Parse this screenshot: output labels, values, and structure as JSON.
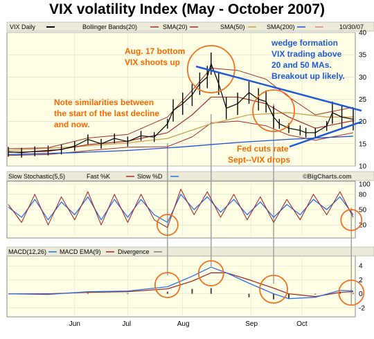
{
  "title": "VIX volatility Index (May - October 2007)",
  "legend_bar": {
    "symbol": "VIX Daily",
    "bollinger": "Bollinger Bands(20)",
    "sma20": "SMA(20)",
    "sma50": "SMA(50)",
    "sma200": "SMA(200)",
    "date": "10/30/07"
  },
  "stoch_header": {
    "name": "Slow Stochastic(5,5)",
    "fast": "Fast %K",
    "slow": "Slow %D",
    "credit": "©BigCharts.com"
  },
  "macd_header": {
    "name": "MACD(12,26)",
    "ema": "MACD EMA(9)",
    "divergence": "Divergence"
  },
  "annotations": {
    "aug17": [
      "Aug. 17 bottom",
      "VIX shoots up"
    ],
    "wedge": [
      "wedge formation",
      "VIX trading above",
      "20 and 50 MAs.",
      "Breakout up likely."
    ],
    "note": [
      "Note similarities between",
      "the start of the last decline",
      "and now."
    ],
    "fed": [
      "Fed cuts rate",
      "Sept--VIX drops"
    ]
  },
  "colors": {
    "panel_bg": "#ffffe6",
    "header_bg": "#ebebd8",
    "price": "#000000",
    "bollinger": "#a52a2a",
    "sma20": "#a52a2a",
    "sma50": "#c8a050",
    "sma200": "#1e4fd8",
    "fast_k": "#a52a2a",
    "slow_d": "#2a6ee8",
    "annotation": "#ff6600",
    "wedge_note": "#1e5ad8",
    "wedge_line": "#1e5ad8",
    "circle": "#f07020",
    "vline": "#a0a0a0"
  },
  "chart_data": [
    {
      "type": "line",
      "panel": "price",
      "x_ticks": [
        "Jun",
        "Jul",
        "Aug",
        "Sep",
        "Oct"
      ],
      "y_ticks": [
        10,
        15,
        20,
        25,
        30,
        35,
        40
      ],
      "ylim": [
        10,
        40
      ],
      "series": [
        {
          "name": "VIX Daily",
          "x": [
            "05-01",
            "05-08",
            "05-15",
            "05-22",
            "05-29",
            "06-05",
            "06-12",
            "06-19",
            "06-26",
            "07-03",
            "07-10",
            "07-17",
            "07-24",
            "07-27",
            "08-01",
            "08-06",
            "08-10",
            "08-14",
            "08-16",
            "08-20",
            "08-24",
            "08-30",
            "09-05",
            "09-10",
            "09-14",
            "09-18",
            "09-21",
            "09-26",
            "10-02",
            "10-05",
            "10-10",
            "10-16",
            "10-19",
            "10-24",
            "10-30"
          ],
          "values": [
            13.2,
            13.0,
            13.3,
            13.5,
            13.7,
            14.5,
            16.0,
            15.0,
            16.2,
            15.5,
            16.8,
            16.5,
            19.5,
            22.5,
            24.0,
            26.0,
            28.5,
            30.0,
            33.0,
            28.5,
            23.0,
            24.0,
            26.5,
            25.0,
            24.5,
            21.0,
            19.5,
            18.5,
            18.0,
            17.5,
            17.5,
            19.0,
            22.0,
            21.0,
            20.5
          ]
        },
        {
          "name": "SMA(20)",
          "x": [
            "05-01",
            "05-22",
            "06-12",
            "07-03",
            "07-24",
            "08-06",
            "08-16",
            "08-30",
            "09-14",
            "09-26",
            "10-10",
            "10-30"
          ],
          "values": [
            13.1,
            13.3,
            14.8,
            15.6,
            17.5,
            21.5,
            25.5,
            25.5,
            24.0,
            21.0,
            18.5,
            20.2
          ]
        },
        {
          "name": "SMA(50)",
          "x": [
            "05-01",
            "06-05",
            "07-03",
            "07-24",
            "08-16",
            "09-05",
            "09-26",
            "10-16",
            "10-30"
          ],
          "values": [
            13.5,
            14.3,
            15.2,
            16.2,
            19.5,
            21.5,
            22.0,
            21.0,
            21.0
          ]
        },
        {
          "name": "SMA(200)",
          "x": [
            "05-01",
            "06-05",
            "07-03",
            "08-01",
            "08-30",
            "09-26",
            "10-30"
          ],
          "values": [
            12.6,
            13.0,
            13.5,
            14.3,
            15.3,
            16.0,
            16.7
          ]
        }
      ]
    },
    {
      "type": "line",
      "panel": "stochastic",
      "y_ticks": [
        20,
        50,
        80,
        100
      ],
      "ylim": [
        0,
        100
      ],
      "series": [
        {
          "name": "Fast %K",
          "x": [
            "05-01",
            "05-08",
            "05-15",
            "05-22",
            "05-29",
            "06-05",
            "06-12",
            "06-19",
            "06-26",
            "07-03",
            "07-10",
            "07-17",
            "07-24",
            "07-31",
            "08-07",
            "08-14",
            "08-21",
            "08-28",
            "09-04",
            "09-11",
            "09-18",
            "09-25",
            "10-02",
            "10-09",
            "10-16",
            "10-23",
            "10-30"
          ],
          "values": [
            60,
            25,
            80,
            20,
            75,
            30,
            85,
            20,
            80,
            25,
            80,
            30,
            15,
            90,
            40,
            85,
            35,
            80,
            30,
            75,
            25,
            70,
            30,
            80,
            40,
            85,
            35
          ]
        },
        {
          "name": "Slow %D",
          "x": [
            "05-01",
            "05-08",
            "05-15",
            "05-22",
            "05-29",
            "06-05",
            "06-12",
            "06-19",
            "06-26",
            "07-03",
            "07-10",
            "07-17",
            "07-24",
            "07-31",
            "08-07",
            "08-14",
            "08-21",
            "08-28",
            "09-04",
            "09-11",
            "09-18",
            "09-25",
            "10-02",
            "10-09",
            "10-16",
            "10-23",
            "10-30"
          ],
          "values": [
            55,
            35,
            70,
            30,
            65,
            40,
            75,
            30,
            70,
            35,
            70,
            40,
            25,
            80,
            50,
            75,
            45,
            70,
            40,
            65,
            35,
            60,
            40,
            70,
            50,
            75,
            40
          ]
        }
      ]
    },
    {
      "type": "line",
      "panel": "macd",
      "y_ticks": [
        -2,
        0,
        2,
        4
      ],
      "ylim": [
        -3,
        5
      ],
      "series": [
        {
          "name": "MACD(12,26)",
          "x": [
            "05-01",
            "05-22",
            "06-12",
            "07-03",
            "07-24",
            "08-06",
            "08-16",
            "08-24",
            "09-05",
            "09-18",
            "09-26",
            "10-10",
            "10-23",
            "10-30"
          ],
          "values": [
            0.0,
            -0.1,
            0.3,
            0.4,
            1.0,
            2.5,
            3.8,
            3.0,
            1.5,
            0.0,
            -0.7,
            -0.5,
            0.5,
            0.4
          ]
        },
        {
          "name": "MACD EMA(9)",
          "x": [
            "05-01",
            "05-22",
            "06-12",
            "07-03",
            "07-24",
            "08-06",
            "08-16",
            "08-24",
            "09-05",
            "09-18",
            "09-26",
            "10-10",
            "10-23",
            "10-30"
          ],
          "values": [
            0.0,
            0.0,
            0.2,
            0.3,
            0.7,
            1.8,
            3.0,
            3.0,
            2.0,
            0.8,
            0.0,
            -0.4,
            0.2,
            0.3
          ]
        }
      ]
    }
  ]
}
